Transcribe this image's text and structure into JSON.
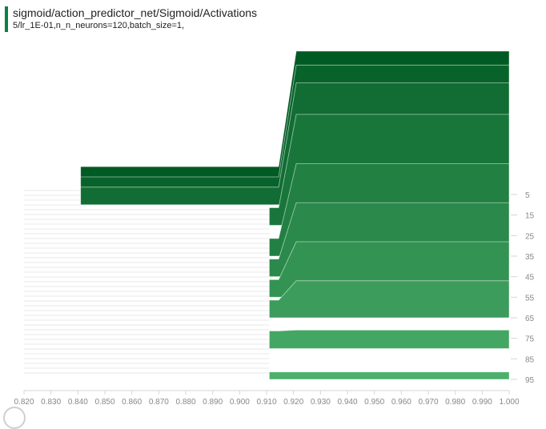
{
  "card": {
    "title": "sigmoid/action_predictor_net/Sigmoid/Activations",
    "subtitle": "5/lr_1E-01,n_n_neurons=120,batch_size=1,"
  },
  "colors": {
    "accent": "#0b8043",
    "dark": "#005a23",
    "light": "#4caf6b",
    "line": "#d6d6d6",
    "tick": "#888888"
  },
  "chart_data": {
    "type": "area",
    "title": "",
    "xlabel": "",
    "ylabel": "",
    "xlim": [
      0.82,
      1.0
    ],
    "ylim": [
      0,
      100
    ],
    "x_ticks": [
      "0.820",
      "0.830",
      "0.840",
      "0.850",
      "0.860",
      "0.870",
      "0.880",
      "0.890",
      "0.900",
      "0.910",
      "0.920",
      "0.930",
      "0.940",
      "0.950",
      "0.960",
      "0.970",
      "0.980",
      "0.990",
      "1.000"
    ],
    "y_ticks": [
      "5",
      "15",
      "25",
      "35",
      "45",
      "55",
      "65",
      "75",
      "85",
      "95"
    ],
    "series": [
      {
        "step": 0,
        "min": 0.841,
        "max": 1.0,
        "peak": 0.72
      },
      {
        "step": 5,
        "min": 0.841,
        "max": 1.0,
        "peak": 0.7
      },
      {
        "step": 10,
        "min": 0.841,
        "max": 1.0,
        "peak": 0.66
      },
      {
        "step": 20,
        "min": 0.911,
        "max": 1.0,
        "peak": 0.6
      },
      {
        "step": 35,
        "min": 0.911,
        "max": 1.0,
        "peak": 0.5
      },
      {
        "step": 45,
        "min": 0.911,
        "max": 1.0,
        "peak": 0.4
      },
      {
        "step": 55,
        "min": 0.911,
        "max": 1.0,
        "peak": 0.3
      },
      {
        "step": 65,
        "min": 0.911,
        "max": 1.0,
        "peak": 0.2
      },
      {
        "step": 80,
        "min": 0.911,
        "max": 1.0,
        "peak": 0.1
      },
      {
        "step": 95,
        "min": 0.911,
        "max": 1.0,
        "peak": 0.04
      }
    ]
  }
}
